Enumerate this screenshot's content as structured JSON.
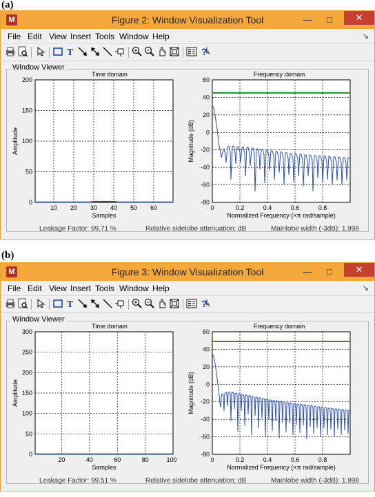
{
  "figures": [
    {
      "panel_label": "(a)",
      "title": "Figure 2: Window Visualization Tool",
      "menu": [
        "File",
        "Edit",
        "View",
        "Insert",
        "Tools",
        "Window",
        "Help"
      ],
      "viewer_label": "Window Viewer",
      "time_title": "Time domain",
      "freq_title": "Frequency domain",
      "time_xlabel": "Samples",
      "time_ylabel": "Amplitude",
      "freq_xlabel": "Normalized Frequency (×π rad/sample)",
      "freq_ylabel": "Magnitude (dB)",
      "time_xticks": [
        "10",
        "20",
        "30",
        "40",
        "50",
        "60"
      ],
      "time_yticks": [
        "0",
        "50",
        "100",
        "150",
        "200"
      ],
      "freq_xticks": [
        "0",
        "0.2",
        "0.4",
        "0.6",
        "0.8"
      ],
      "freq_yticks": [
        "-80",
        "-60",
        "-40",
        "-20",
        "0",
        "20",
        "40",
        "60"
      ],
      "leakage": "Leakage Factor: 99.71 %",
      "sidelobe": "Relative sidelobe attenuation:  dB",
      "mainlobe": "Mainlobe width (-3dB): 1.998"
    },
    {
      "panel_label": "(b)",
      "title": "Figure 3: Window Visualization Tool",
      "menu": [
        "File",
        "Edit",
        "View",
        "Insert",
        "Tools",
        "Window",
        "Help"
      ],
      "viewer_label": "Window Viewer",
      "time_title": "Time domain",
      "freq_title": "Frequency domain",
      "time_xlabel": "Samples",
      "time_ylabel": "Amplitude",
      "freq_xlabel": "Normalized Frequency (×π rad/sample)",
      "freq_ylabel": "Magnitude (dB)",
      "time_xticks": [
        "20",
        "40",
        "60",
        "80",
        "100"
      ],
      "time_yticks": [
        "0",
        "50",
        "100",
        "150",
        "200",
        "250",
        "300"
      ],
      "freq_xticks": [
        "0",
        "0.2",
        "0.4",
        "0.6",
        "0.8"
      ],
      "freq_yticks": [
        "-80",
        "-60",
        "-40",
        "-20",
        "0",
        "20",
        "40",
        "60"
      ],
      "leakage": "Leakage Factor: 99.51 %",
      "sidelobe": "Relative sidelobe attenuation:  dB",
      "mainlobe": "Mainlobe width (-3dB): 1.998"
    }
  ],
  "chart_data": [
    {
      "type": "line",
      "title": "Time domain",
      "xlabel": "Samples",
      "ylabel": "Amplitude",
      "xlim": [
        1,
        70
      ],
      "ylim": [
        0,
        200
      ],
      "grid": true,
      "series": [
        {
          "color": "#2b4fb0",
          "x": [
            1,
            28,
            30,
            35,
            40,
            43,
            70
          ],
          "y": [
            0,
            0,
            0.6,
            1,
            0.6,
            0,
            0
          ]
        }
      ]
    },
    {
      "type": "line",
      "title": "Frequency domain",
      "xlabel": "Normalized Frequency (×π rad/sample)",
      "ylabel": "Magnitude (dB)",
      "xlim": [
        0,
        1
      ],
      "ylim": [
        -80,
        60
      ],
      "grid": true,
      "series": [
        {
          "color": "#2b4fb0",
          "x": [
            0,
            0.01,
            0.02,
            0.03,
            0.04,
            0.05,
            0.07,
            0.1,
            0.15,
            0.2,
            0.3,
            0.4,
            0.5,
            0.6,
            0.7,
            0.8,
            0.9,
            1.0
          ],
          "y": [
            31,
            28,
            18,
            5,
            -10,
            -28,
            -18,
            -14,
            -14,
            -15,
            -17,
            -18,
            -19,
            -20,
            -21,
            -22,
            -23,
            -23
          ]
        },
        {
          "color": "#2e8b2e",
          "x": [
            0,
            1
          ],
          "y": [
            45,
            45
          ]
        }
      ]
    },
    {
      "type": "line",
      "title": "Time domain",
      "xlabel": "Samples",
      "ylabel": "Amplitude",
      "xlim": [
        1,
        100
      ],
      "ylim": [
        0,
        300
      ],
      "grid": true,
      "series": [
        {
          "color": "#2b4fb0",
          "x": [
            1,
            100
          ],
          "y": [
            0,
            0
          ]
        }
      ]
    },
    {
      "type": "line",
      "title": "Frequency domain",
      "xlabel": "Normalized Frequency (×π rad/sample)",
      "ylabel": "Magnitude (dB)",
      "xlim": [
        0,
        1
      ],
      "ylim": [
        -80,
        60
      ],
      "grid": true,
      "series": [
        {
          "color": "#2b4fb0",
          "x": [
            0,
            0.01,
            0.02,
            0.03,
            0.04,
            0.05,
            0.07,
            0.1,
            0.15,
            0.2,
            0.3,
            0.4,
            0.5,
            0.6,
            0.7,
            0.8,
            0.9,
            1.0
          ],
          "y": [
            35,
            32,
            22,
            8,
            -8,
            -25,
            -15,
            -11,
            -12,
            -13,
            -15,
            -16,
            -17,
            -18,
            -19,
            -20,
            -21,
            -22
          ]
        },
        {
          "color": "#2e8b2e",
          "x": [
            0,
            1
          ],
          "y": [
            49,
            49
          ]
        }
      ]
    }
  ]
}
